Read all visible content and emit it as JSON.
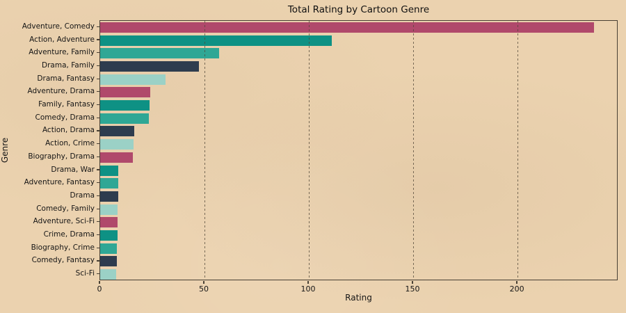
{
  "figure": {
    "title": "Total Rating by Cartoon Genre",
    "xlabel": "Rating",
    "ylabel": "Genre"
  },
  "colors": {
    "background": "#ebd2af",
    "spine": "#473f33",
    "grid": "#50463a",
    "text": "#151515"
  },
  "chart_data": {
    "type": "bar",
    "orientation": "horizontal",
    "title": "Total Rating by Cartoon Genre",
    "xlabel": "Rating",
    "ylabel": "Genre",
    "categories": [
      "Adventure, Comedy",
      "Action, Adventure",
      "Adventure, Family",
      "Drama, Family",
      "Drama, Fantasy",
      "Adventure, Drama",
      "Family, Fantasy",
      "Comedy, Drama",
      "Action, Drama",
      "Action, Crime",
      "Biography, Drama",
      "Drama, War",
      "Adventure, Fantasy",
      "Drama",
      "Comedy, Family",
      "Adventure, Sci-Fi",
      "Crime, Drama",
      "Biography, Crime",
      "Comedy, Fantasy",
      "Sci-Fi"
    ],
    "values": [
      236.6,
      111.0,
      57.0,
      47.3,
      31.4,
      24.0,
      23.8,
      23.4,
      16.3,
      16.0,
      15.7,
      8.7,
      8.6,
      8.5,
      8.4,
      8.3,
      8.2,
      8.1,
      8.0,
      7.8
    ],
    "xticks": [
      0,
      50,
      100,
      150,
      200
    ],
    "xtick_labels": [
      "0",
      "50",
      "100",
      "150",
      "200"
    ],
    "xlim": [
      0,
      248.3
    ],
    "grid": "vertical-dashed-on-top",
    "legend": "none",
    "bar_color_cycle": [
      "#b0496b",
      "#0e9184",
      "#2fa795",
      "#2e3c4e",
      "#9bd1c6"
    ]
  }
}
